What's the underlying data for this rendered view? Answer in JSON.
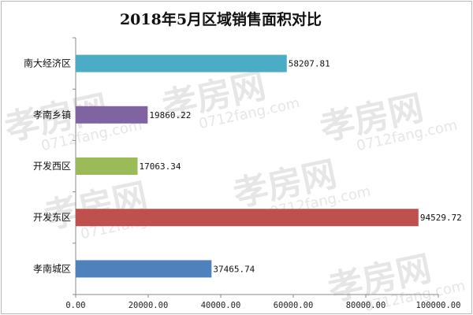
{
  "watermark": {
    "brand": "孝房网",
    "domain": "0712fang",
    "suffix": ".com"
  },
  "chart_data": {
    "type": "bar",
    "orientation": "horizontal",
    "title": "2018年5月区域销售面积对比",
    "xlabel": "",
    "ylabel": "",
    "xlim": [
      0,
      100000
    ],
    "x_ticks": [
      "0.00",
      "20000.00",
      "40000.00",
      "60000.00",
      "80000.00",
      "100000.00"
    ],
    "x_tick_values": [
      0,
      20000,
      40000,
      60000,
      80000,
      100000
    ],
    "categories": [
      "南大经济区",
      "孝南乡镇",
      "开发西区",
      "开发东区",
      "孝南城区"
    ],
    "values": [
      58207.81,
      19860.22,
      17063.34,
      94529.72,
      37465.74
    ],
    "value_labels": [
      "58207.81",
      "19860.22",
      "17063.34",
      "94529.72",
      "37465.74"
    ],
    "colors": [
      "#4bacc6",
      "#8064a2",
      "#9bbb59",
      "#c0504d",
      "#4f81bd"
    ],
    "grid": false,
    "legend": "none"
  }
}
